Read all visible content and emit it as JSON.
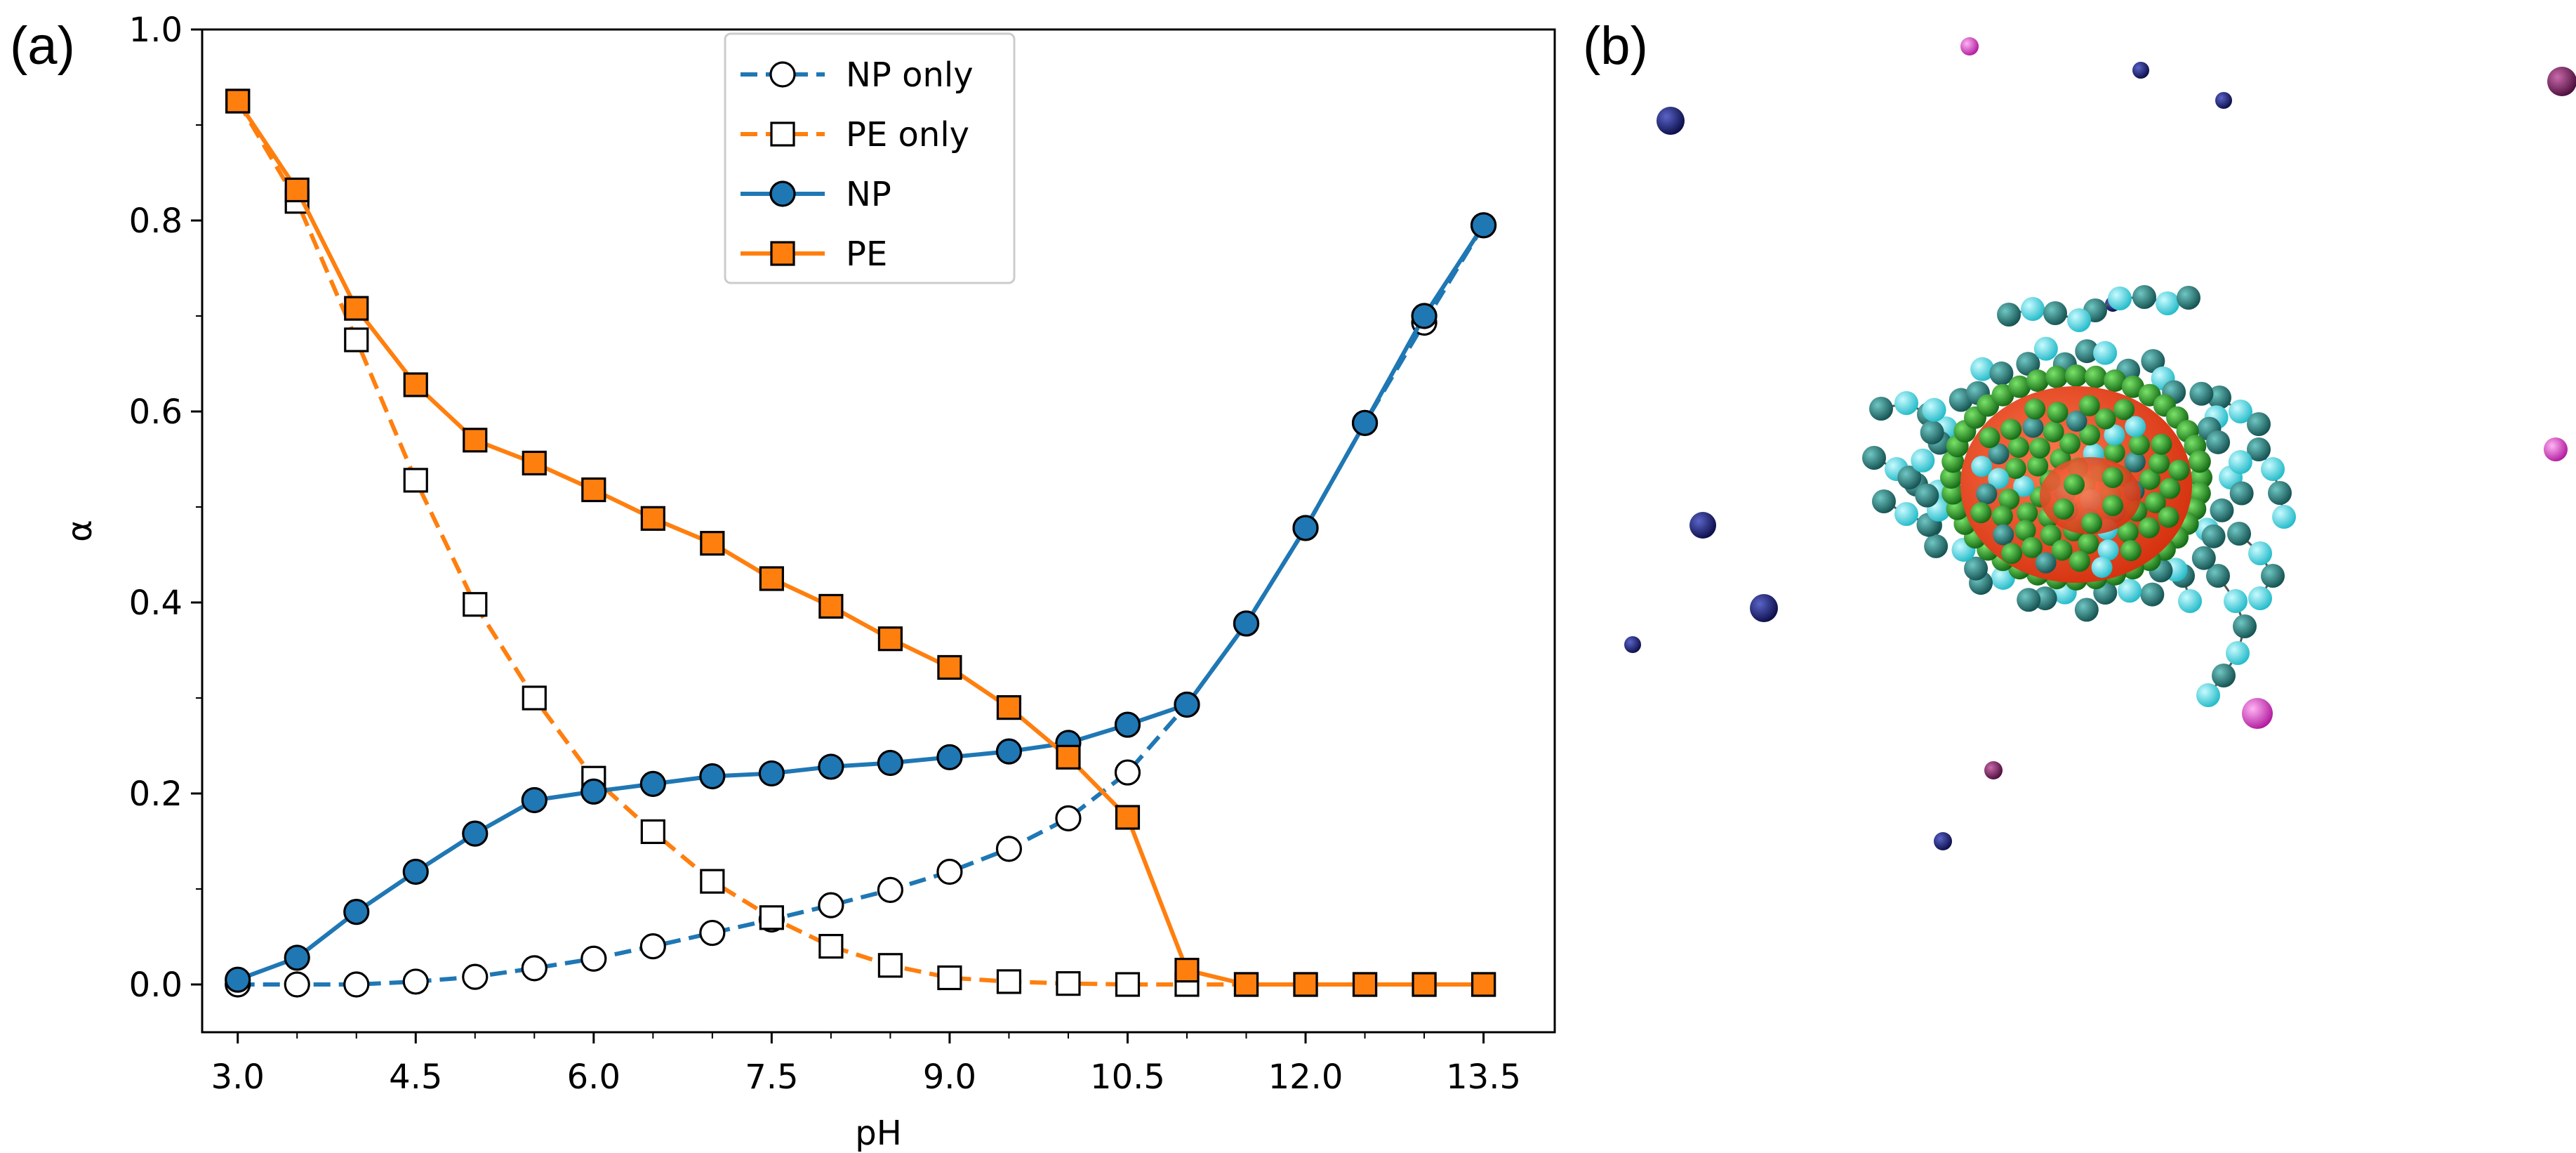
{
  "figure": {
    "panel_a_label": "(a)",
    "panel_b_label": "(b)"
  },
  "chart_data": {
    "type": "line",
    "title": "",
    "xlabel": "pH",
    "ylabel": "α",
    "xlim": [
      2.7,
      14.1
    ],
    "ylim": [
      -0.05,
      1.0
    ],
    "xticks": [
      3.0,
      4.5,
      6.0,
      7.5,
      9.0,
      10.5,
      12.0,
      13.5
    ],
    "xtick_labels": [
      "3.0",
      "4.5",
      "6.0",
      "7.5",
      "9.0",
      "10.5",
      "12.0",
      "13.5"
    ],
    "yticks": [
      0.0,
      0.2,
      0.4,
      0.6,
      0.8,
      1.0
    ],
    "ytick_labels": [
      "0.0",
      "0.2",
      "0.4",
      "0.6",
      "0.8",
      "1.0"
    ],
    "grid": false,
    "legend_position": "top-center",
    "x": [
      3.0,
      3.5,
      4.0,
      4.5,
      5.0,
      5.5,
      6.0,
      6.5,
      7.0,
      7.5,
      8.0,
      8.5,
      9.0,
      9.5,
      10.0,
      10.5,
      11.0,
      11.5,
      12.0,
      12.5,
      13.0,
      13.5
    ],
    "series": [
      {
        "name": "NP only",
        "color": "#1f77b4",
        "line": "dashed",
        "marker": "circle",
        "marker_fill": "#ffffff",
        "values": [
          0.0,
          0.0,
          0.0,
          0.003,
          0.008,
          0.017,
          0.027,
          0.04,
          0.054,
          0.068,
          0.083,
          0.099,
          0.118,
          0.142,
          0.174,
          0.222,
          0.293,
          0.378,
          0.478,
          0.588,
          0.693,
          0.795
        ]
      },
      {
        "name": "PE only",
        "color": "#ff7f0e",
        "line": "dashed",
        "marker": "square",
        "marker_fill": "#ffffff",
        "values": [
          0.925,
          0.82,
          0.675,
          0.528,
          0.398,
          0.3,
          0.216,
          0.16,
          0.108,
          0.07,
          0.04,
          0.02,
          0.007,
          0.003,
          0.001,
          0.0,
          0.0,
          0.0,
          0.0,
          0.0,
          0.0,
          0.0
        ]
      },
      {
        "name": "NP",
        "color": "#1f77b4",
        "line": "solid",
        "marker": "circle",
        "marker_fill": "#1f77b4",
        "values": [
          0.005,
          0.028,
          0.076,
          0.118,
          0.158,
          0.193,
          0.202,
          0.21,
          0.218,
          0.221,
          0.228,
          0.232,
          0.238,
          0.244,
          0.253,
          0.272,
          0.293,
          0.378,
          0.478,
          0.588,
          0.7,
          0.795
        ]
      },
      {
        "name": "PE",
        "color": "#ff7f0e",
        "line": "solid",
        "marker": "square",
        "marker_fill": "#ff7f0e",
        "values": [
          0.925,
          0.832,
          0.708,
          0.628,
          0.57,
          0.546,
          0.518,
          0.488,
          0.462,
          0.425,
          0.396,
          0.362,
          0.332,
          0.29,
          0.238,
          0.175,
          0.015,
          0.0,
          0.0,
          0.0,
          0.0,
          0.0
        ]
      }
    ]
  },
  "simulation_snapshot": {
    "colors": {
      "nanoparticle_core": "#e8401e",
      "core_beads": "#1f9e1f",
      "chain_dark": "#1f7a78",
      "chain_light": "#3ce0ec",
      "ion_navy": "#14196e",
      "ion_magenta": "#e23ccd",
      "ion_purple": "#7a1c64"
    }
  }
}
